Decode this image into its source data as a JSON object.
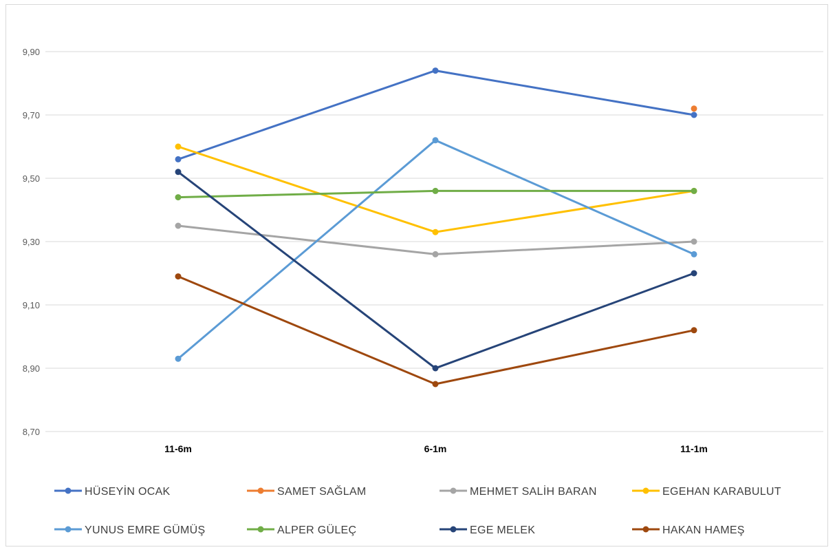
{
  "chart_data": {
    "type": "line",
    "title": "",
    "xlabel": "",
    "ylabel": "",
    "categories": [
      "11-6m",
      "6-1m",
      "11-1m"
    ],
    "ylim": [
      8.7,
      9.9
    ],
    "yticks": [
      "8,70",
      "8,90",
      "9,10",
      "9,30",
      "9,50",
      "9,70",
      "9,90"
    ],
    "grid": true,
    "legend_position": "bottom",
    "series": [
      {
        "name": "HÜSEYİN OCAK",
        "color": "#4472C4",
        "values": [
          9.56,
          9.84,
          9.7
        ]
      },
      {
        "name": "SAMET SAĞLAM",
        "color": "#ED7D31",
        "values": [
          null,
          null,
          9.72
        ]
      },
      {
        "name": "MEHMET SALİH BARAN",
        "color": "#A5A5A5",
        "values": [
          9.35,
          9.26,
          9.3
        ]
      },
      {
        "name": "EGEHAN KARABULUT",
        "color": "#FFC000",
        "values": [
          9.6,
          9.33,
          9.46
        ]
      },
      {
        "name": "YUNUS EMRE GÜMÜŞ",
        "color": "#5B9BD5",
        "values": [
          8.93,
          9.62,
          9.26
        ]
      },
      {
        "name": "ALPER GÜLEÇ",
        "color": "#70AD47",
        "values": [
          9.44,
          9.46,
          9.46
        ]
      },
      {
        "name": "EGE MELEK",
        "color": "#264478",
        "values": [
          9.52,
          8.9,
          9.2
        ]
      },
      {
        "name": "HAKAN HAMEŞ",
        "color": "#9E480E",
        "values": [
          9.19,
          8.85,
          9.02
        ]
      }
    ]
  }
}
